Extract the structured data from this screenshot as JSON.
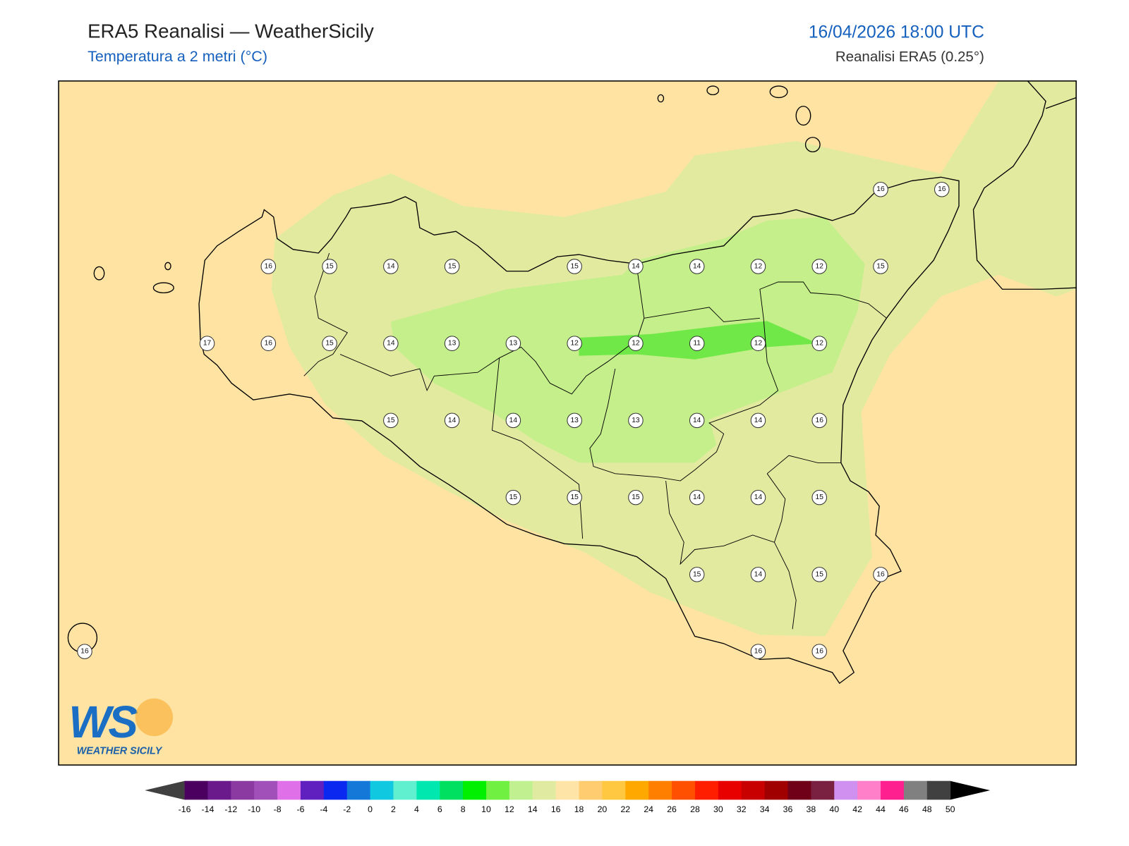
{
  "header": {
    "title": "ERA5 Reanalisi — WeatherSicily",
    "subtitle": "Temperatura a 2 metri (°C)",
    "datetime": "16/04/2026 18:00 UTC",
    "source": "Reanalisi ERA5 (0.25°)"
  },
  "map": {
    "rows": [
      [
        null,
        null,
        null,
        null,
        null,
        null,
        null,
        null,
        null,
        null,
        null,
        null,
        null,
        16,
        16
      ],
      [
        null,
        null,
        null,
        16,
        15,
        14,
        15,
        null,
        15,
        14,
        14,
        12,
        12,
        15,
        null
      ],
      [
        null,
        null,
        17,
        16,
        15,
        14,
        13,
        13,
        12,
        12,
        11,
        12,
        12,
        null,
        null
      ],
      [
        null,
        null,
        null,
        null,
        null,
        15,
        14,
        14,
        13,
        13,
        14,
        14,
        16,
        null,
        null
      ],
      [
        null,
        null,
        null,
        null,
        null,
        null,
        null,
        15,
        15,
        15,
        14,
        14,
        15,
        null,
        null
      ],
      [
        null,
        null,
        null,
        null,
        null,
        null,
        null,
        null,
        null,
        null,
        15,
        14,
        15,
        16,
        null
      ],
      [
        16,
        null,
        null,
        null,
        null,
        null,
        null,
        null,
        null,
        null,
        null,
        16,
        16,
        null,
        null
      ]
    ]
  },
  "logo": {
    "letters": "WS",
    "name": "WEATHER SICILY"
  },
  "legend": {
    "ticks": [
      -16,
      -14,
      -12,
      -10,
      -8,
      -6,
      -4,
      -2,
      0,
      2,
      4,
      6,
      8,
      10,
      12,
      14,
      16,
      18,
      20,
      22,
      24,
      26,
      28,
      30,
      32,
      34,
      36,
      38,
      40,
      42,
      44,
      46,
      48,
      50
    ],
    "colors": [
      "#4b0060",
      "#6a1a8a",
      "#8a3aa0",
      "#a050b8",
      "#e070e8",
      "#6020c0",
      "#0a28f0",
      "#1478d8",
      "#10c8e0",
      "#60f0d0",
      "#00e8b0",
      "#00e060",
      "#00f000",
      "#70f040",
      "#c0f090",
      "#e0eaa0",
      "#ffe4a8",
      "#ffcc70",
      "#ffc840",
      "#ffa800",
      "#ff8000",
      "#ff5000",
      "#ff1e00",
      "#e80000",
      "#c80000",
      "#a00000",
      "#700018",
      "#7a2040",
      "#d090f0",
      "#ff80c8",
      "#ff2090",
      "#808080",
      "#404040"
    ],
    "under_color": "#404040",
    "over_color": "#000000"
  }
}
